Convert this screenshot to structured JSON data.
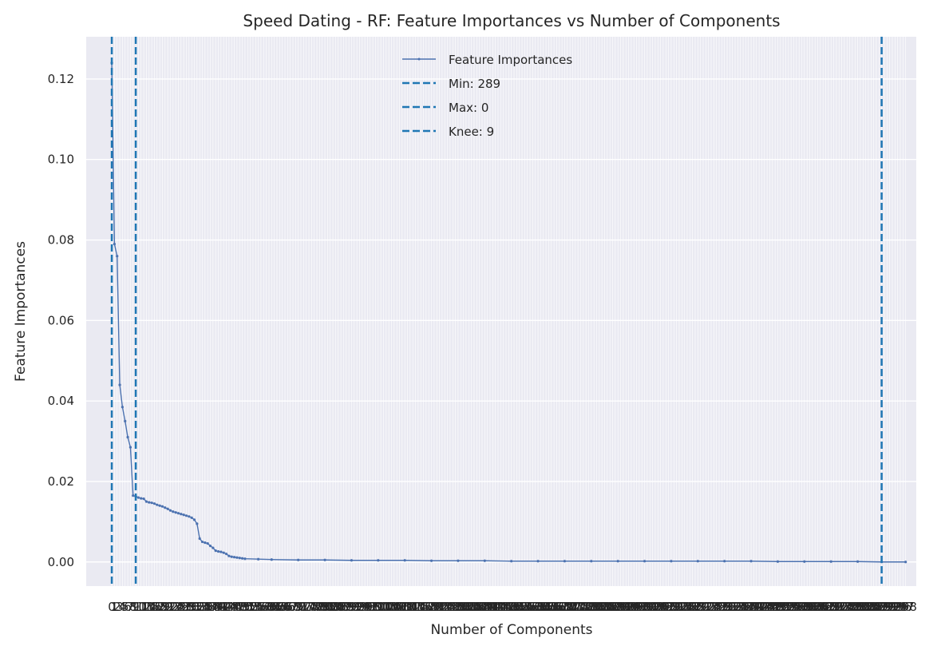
{
  "chart_data": {
    "type": "line",
    "title": "Speed Dating - RF: Feature Importances vs Number of Components",
    "xlabel": "Number of Components",
    "ylabel": "Feature Importances",
    "xlim": [
      -9.6,
      302
    ],
    "ylim": [
      -0.006,
      0.1305
    ],
    "yticks": [
      0.0,
      0.02,
      0.04,
      0.06,
      0.08,
      0.1,
      0.12
    ],
    "ytick_labels": [
      "0.00",
      "0.02",
      "0.04",
      "0.06",
      "0.08",
      "0.10",
      "0.12"
    ],
    "x_tick_count": 299,
    "grid": true,
    "legend_position": "upper center",
    "series": [
      {
        "name": "Feature Importances",
        "color": "#4c72b0",
        "x": [
          0,
          1,
          2,
          3,
          4,
          5,
          6,
          7,
          8,
          9,
          10,
          11,
          12,
          13,
          14,
          15,
          16,
          17,
          18,
          19,
          20,
          21,
          22,
          23,
          24,
          25,
          26,
          27,
          28,
          29,
          30,
          31,
          32,
          33,
          34,
          35,
          36,
          37,
          38,
          39,
          40,
          41,
          42,
          43,
          44,
          45,
          46,
          47,
          48,
          49,
          50,
          55,
          60,
          70,
          80,
          90,
          100,
          110,
          120,
          130,
          140,
          150,
          160,
          170,
          180,
          190,
          200,
          210,
          220,
          230,
          240,
          250,
          260,
          270,
          280,
          289,
          298
        ],
        "values": [
          0.124,
          0.079,
          0.076,
          0.044,
          0.0385,
          0.035,
          0.031,
          0.0285,
          0.0165,
          0.0163,
          0.016,
          0.0158,
          0.0157,
          0.015,
          0.0148,
          0.0147,
          0.0145,
          0.0142,
          0.014,
          0.0138,
          0.0135,
          0.0132,
          0.0128,
          0.0125,
          0.0123,
          0.0121,
          0.0119,
          0.0117,
          0.0115,
          0.0113,
          0.011,
          0.0105,
          0.0095,
          0.0058,
          0.005,
          0.0048,
          0.0046,
          0.004,
          0.0035,
          0.0028,
          0.0026,
          0.0025,
          0.0023,
          0.002,
          0.0015,
          0.0013,
          0.0012,
          0.0011,
          0.001,
          0.0009,
          0.0008,
          0.0007,
          0.0006,
          0.0005,
          0.0005,
          0.0004,
          0.0004,
          0.0004,
          0.0003,
          0.0003,
          0.0003,
          0.0002,
          0.0002,
          0.0002,
          0.0002,
          0.0002,
          0.0002,
          0.0002,
          0.0002,
          0.0002,
          0.0002,
          0.0001,
          0.0001,
          0.0001,
          0.0001,
          0.0,
          0.0
        ]
      }
    ],
    "vlines": [
      {
        "label": "Min: 289",
        "x": 289,
        "color": "#1f77b4"
      },
      {
        "label": "Max: 0",
        "x": 0,
        "color": "#1f77b4"
      },
      {
        "label": "Knee: 9",
        "x": 9,
        "color": "#1f77b4"
      }
    ]
  },
  "colors": {
    "plot_background": "#eaeaf2",
    "grid": "#ffffff",
    "series_line": "#4c72b0",
    "vline": "#1f77b4"
  }
}
